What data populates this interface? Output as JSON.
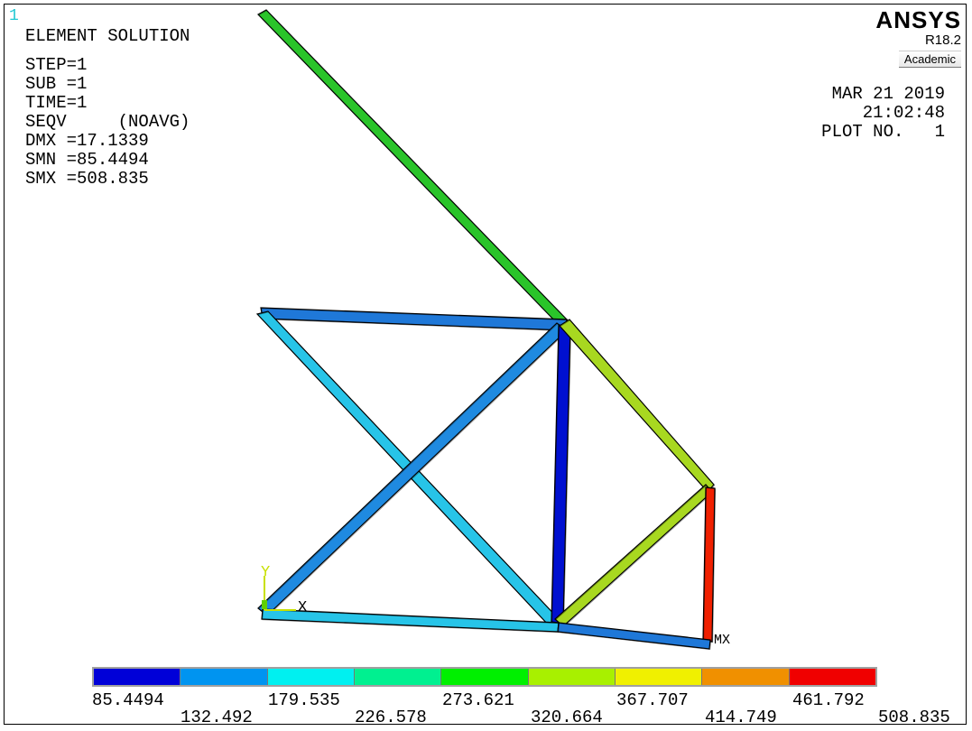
{
  "window_number": "1",
  "info": {
    "title": "ELEMENT SOLUTION",
    "lines": [
      "STEP=1",
      "SUB =1",
      "TIME=1",
      "SEQV     (NOAVG)",
      "DMX =17.1339",
      "SMN =85.4494",
      "SMX =508.835"
    ]
  },
  "brand": {
    "name": "ANSYS",
    "version": "R18.2",
    "edition": "Academic"
  },
  "stamp": {
    "date": "MAR 21 2019",
    "time": "21:02:48",
    "plot": "PLOT NO.   1"
  },
  "triad": {
    "y": "Y",
    "x": "X"
  },
  "max_marker": "MX",
  "legend": {
    "colors": [
      "#0000d8",
      "#0094f0",
      "#00f0f0",
      "#00f090",
      "#00f000",
      "#a8f000",
      "#f0f000",
      "#f09000",
      "#f00000"
    ],
    "labels_top": [
      "85.4494",
      "179.535",
      "273.621",
      "367.707",
      "461.792"
    ],
    "labels_bottom": [
      "132.492",
      "226.578",
      "320.664",
      "414.749",
      "508.835"
    ]
  },
  "elements": [
    {
      "name": "top-diagonal-member",
      "color": "#2ac42a"
    },
    {
      "name": "upper-chord-member",
      "color": "#1f78d8"
    },
    {
      "name": "left-diagonal-member",
      "color": "#27c4e8"
    },
    {
      "name": "cross-diagonal-member",
      "color": "#1f8ae0"
    },
    {
      "name": "vertical-member",
      "color": "#0010d0"
    },
    {
      "name": "right-diagonal-member",
      "color": "#a8d820"
    },
    {
      "name": "lower-right-diagonal-member",
      "color": "#a8d820"
    },
    {
      "name": "right-vertical-member",
      "color": "#f02000"
    },
    {
      "name": "bottom-left-chord-member",
      "color": "#27c4e8"
    },
    {
      "name": "bottom-right-chord-member",
      "color": "#1f78d8"
    }
  ]
}
